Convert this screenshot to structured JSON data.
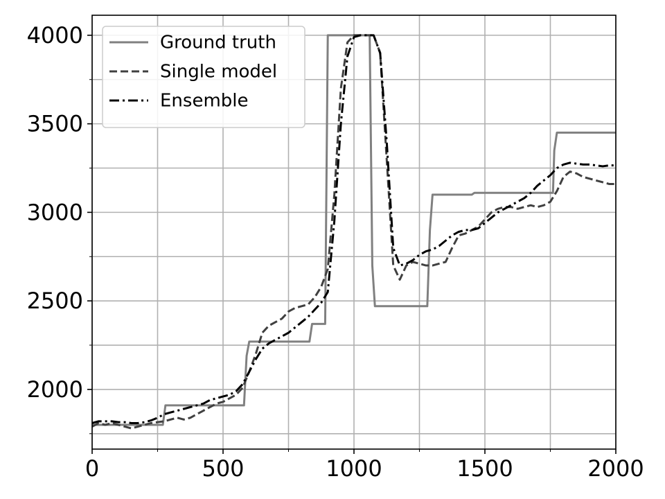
{
  "chart_data": {
    "type": "line",
    "xlim": [
      0,
      2000
    ],
    "ylim": [
      1663,
      4113
    ],
    "xticks": [
      0,
      500,
      1000,
      1500,
      2000
    ],
    "yticks": [
      2000,
      2500,
      3000,
      3500,
      4000
    ],
    "xminor_ticks": [
      250,
      750,
      1250,
      1750
    ],
    "yminor_ticks": [
      1750,
      2250,
      2750,
      3250,
      3750
    ],
    "grid": true,
    "legend": "upper left",
    "series": [
      {
        "name": "Ground truth",
        "color": "#808080",
        "linestyle": "solid",
        "x": [
          0,
          270,
          280,
          580,
          590,
          600,
          830,
          840,
          890,
          900,
          1060,
          1070,
          1080,
          1280,
          1290,
          1300,
          1450,
          1460,
          1760,
          1765,
          1775,
          2000
        ],
        "values": [
          1800,
          1800,
          1910,
          1910,
          2190,
          2270,
          2270,
          2370,
          2370,
          4000,
          4000,
          2700,
          2470,
          2470,
          2900,
          3100,
          3100,
          3110,
          3110,
          3350,
          3450,
          3450
        ]
      },
      {
        "name": "Single model",
        "color": "#404040",
        "linestyle": "dashed",
        "x": [
          0,
          25,
          50,
          75,
          100,
          125,
          150,
          175,
          200,
          225,
          250,
          275,
          300,
          325,
          350,
          375,
          400,
          425,
          450,
          475,
          500,
          525,
          550,
          575,
          600,
          625,
          650,
          675,
          700,
          725,
          750,
          775,
          800,
          825,
          850,
          875,
          900,
          925,
          950,
          975,
          1000,
          1025,
          1050,
          1075,
          1100,
          1125,
          1150,
          1175,
          1200,
          1225,
          1250,
          1275,
          1300,
          1325,
          1350,
          1375,
          1400,
          1425,
          1450,
          1475,
          1500,
          1525,
          1550,
          1575,
          1600,
          1625,
          1650,
          1675,
          1700,
          1725,
          1750,
          1775,
          1800,
          1825,
          1850,
          1875,
          1900,
          1925,
          1950,
          1975,
          2000
        ],
        "values": [
          1790,
          1810,
          1800,
          1810,
          1800,
          1790,
          1780,
          1790,
          1800,
          1810,
          1815,
          1820,
          1830,
          1840,
          1830,
          1840,
          1860,
          1880,
          1900,
          1920,
          1930,
          1950,
          1970,
          2010,
          2100,
          2200,
          2320,
          2360,
          2380,
          2400,
          2440,
          2460,
          2470,
          2480,
          2520,
          2580,
          2680,
          3100,
          3700,
          3960,
          4000,
          4000,
          4000,
          4000,
          3900,
          3300,
          2700,
          2620,
          2700,
          2720,
          2710,
          2700,
          2700,
          2710,
          2720,
          2800,
          2870,
          2880,
          2900,
          2920,
          2960,
          3000,
          3020,
          3030,
          3030,
          3020,
          3030,
          3040,
          3030,
          3040,
          3060,
          3120,
          3200,
          3230,
          3220,
          3200,
          3190,
          3180,
          3170,
          3160,
          3160
        ]
      },
      {
        "name": "Ensemble",
        "color": "#000000",
        "linestyle": "dashdot",
        "x": [
          0,
          25,
          50,
          75,
          100,
          125,
          150,
          175,
          200,
          225,
          250,
          275,
          300,
          325,
          350,
          375,
          400,
          425,
          450,
          475,
          500,
          525,
          550,
          575,
          600,
          625,
          650,
          675,
          700,
          725,
          750,
          775,
          800,
          825,
          850,
          875,
          900,
          925,
          950,
          975,
          1000,
          1025,
          1050,
          1075,
          1100,
          1125,
          1150,
          1175,
          1200,
          1225,
          1250,
          1275,
          1300,
          1325,
          1350,
          1375,
          1400,
          1425,
          1450,
          1475,
          1500,
          1525,
          1550,
          1575,
          1600,
          1625,
          1650,
          1675,
          1700,
          1725,
          1750,
          1775,
          1800,
          1825,
          1850,
          1875,
          1900,
          1925,
          1950,
          1975,
          2000
        ],
        "values": [
          1810,
          1820,
          1820,
          1820,
          1815,
          1815,
          1810,
          1810,
          1815,
          1825,
          1840,
          1860,
          1870,
          1880,
          1890,
          1900,
          1910,
          1920,
          1940,
          1950,
          1960,
          1970,
          1990,
          2030,
          2100,
          2170,
          2230,
          2260,
          2280,
          2300,
          2320,
          2350,
          2380,
          2410,
          2450,
          2490,
          2550,
          2950,
          3500,
          3880,
          3990,
          4000,
          4000,
          4000,
          3900,
          3400,
          2800,
          2700,
          2710,
          2730,
          2760,
          2780,
          2790,
          2810,
          2840,
          2870,
          2890,
          2900,
          2900,
          2910,
          2940,
          2970,
          3000,
          3020,
          3040,
          3060,
          3080,
          3110,
          3150,
          3180,
          3210,
          3250,
          3270,
          3280,
          3275,
          3270,
          3270,
          3265,
          3260,
          3265,
          3265
        ]
      }
    ]
  }
}
